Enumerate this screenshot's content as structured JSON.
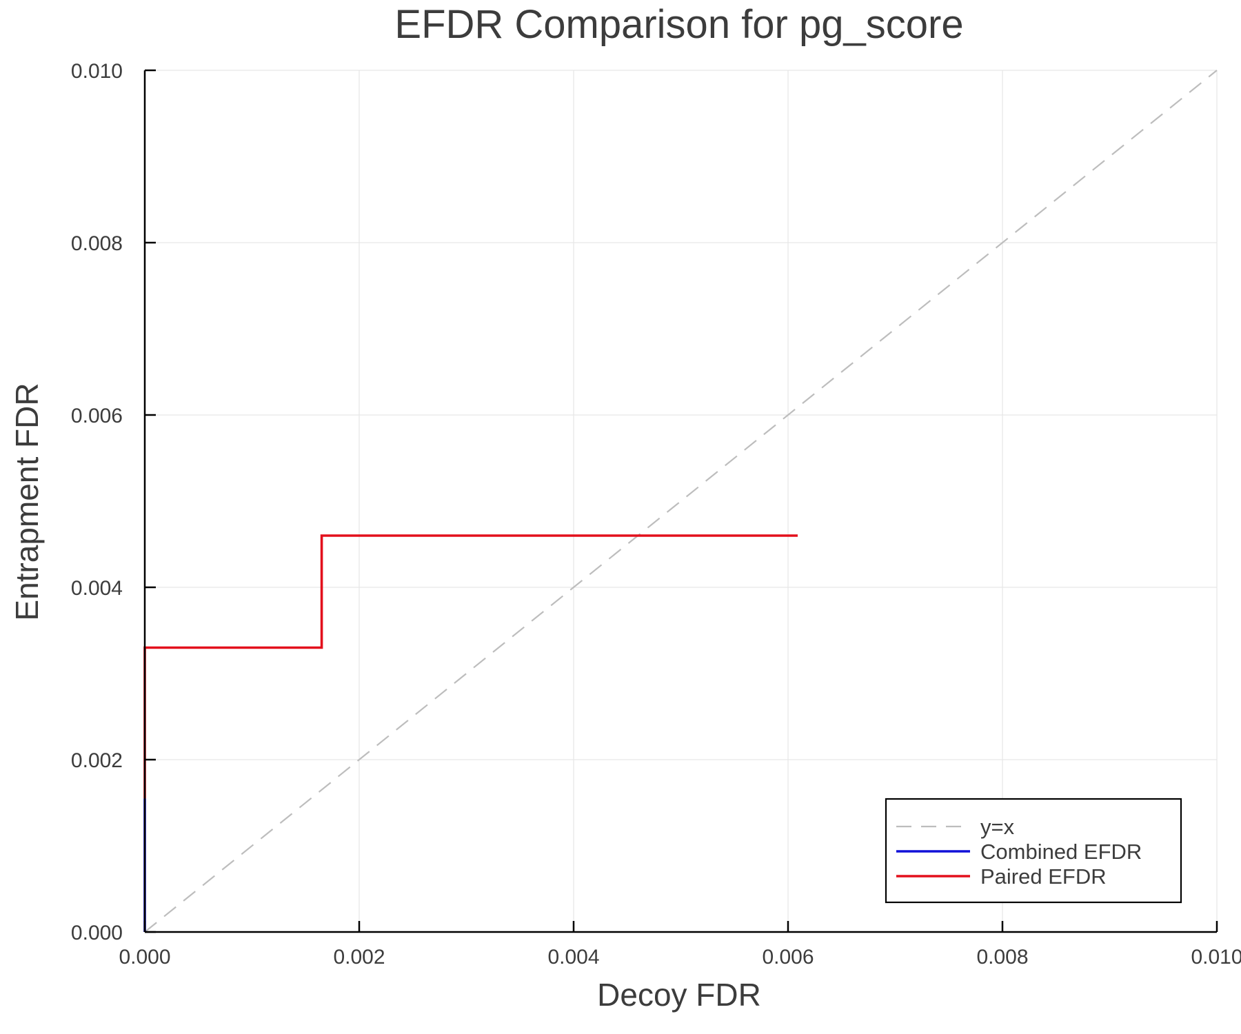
{
  "chart_data": {
    "type": "line",
    "title": "EFDR Comparison for pg_score",
    "xlabel": "Decoy FDR",
    "ylabel": "Entrapment FDR",
    "xlim": [
      0.0,
      0.01
    ],
    "ylim": [
      0.0,
      0.01
    ],
    "xticks": [
      0.0,
      0.002,
      0.004,
      0.006,
      0.008,
      0.01
    ],
    "yticks": [
      0.0,
      0.002,
      0.004,
      0.006,
      0.008,
      0.01
    ],
    "xtick_labels": [
      "0.000",
      "0.002",
      "0.004",
      "0.006",
      "0.008",
      "0.010"
    ],
    "ytick_labels": [
      "0.000",
      "0.002",
      "0.004",
      "0.006",
      "0.008",
      "0.010"
    ],
    "grid": true,
    "legend_position": "bottom-right",
    "series": [
      {
        "name": "y=x",
        "color": "#bdbdbd",
        "style": "dashed",
        "x": [
          0.0,
          0.01
        ],
        "y": [
          0.0,
          0.01
        ]
      },
      {
        "name": "Combined EFDR",
        "color": "#1010d8",
        "style": "solid",
        "x": [
          0.0,
          0.0
        ],
        "y": [
          0.0,
          0.00155
        ]
      },
      {
        "name": "Paired EFDR",
        "color": "#e3101c",
        "style": "solid",
        "x": [
          0.0,
          0.0,
          0.00165,
          0.00165,
          0.00609
        ],
        "y": [
          0.00155,
          0.0033,
          0.0033,
          0.0046,
          0.0046
        ]
      }
    ]
  }
}
